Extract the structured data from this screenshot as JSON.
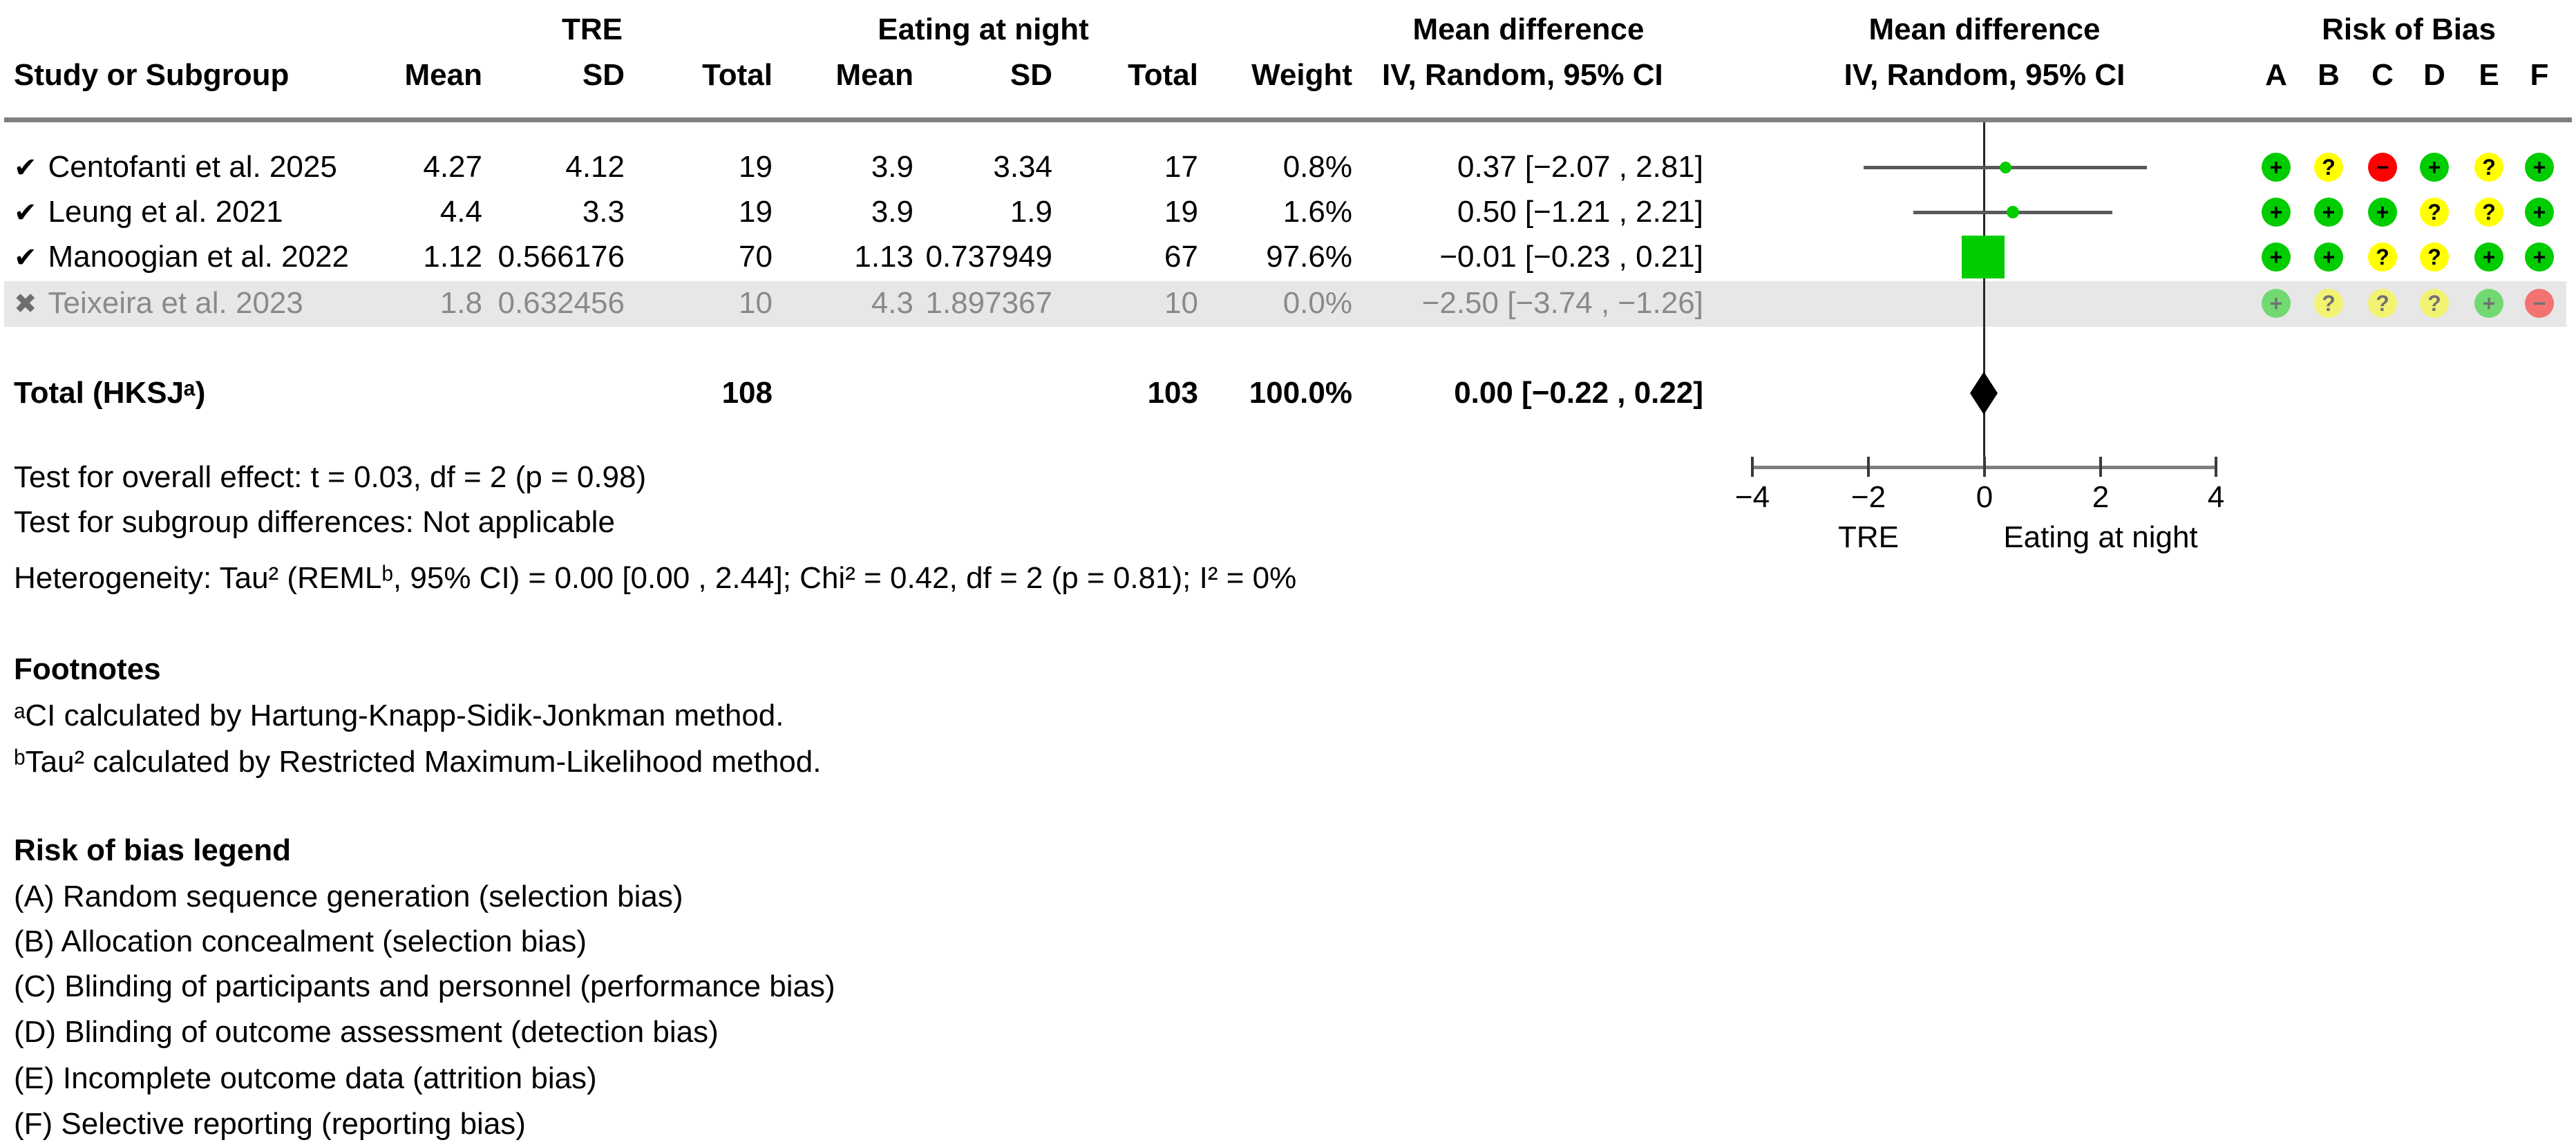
{
  "header": {
    "study_col": "Study or Subgroup",
    "group1": "TRE",
    "group2": "Eating at night",
    "mean": "Mean",
    "sd": "SD",
    "total": "Total",
    "weight": "Weight",
    "effect": "Mean difference",
    "effect_sub": "IV, Random, 95% CI",
    "rob_title": "Risk of Bias",
    "rob_letters": [
      "A",
      "B",
      "C",
      "D",
      "E",
      "F"
    ]
  },
  "studies": [
    {
      "icon": "✔",
      "name": "Centofanti et al. 2025",
      "m1": "4.27",
      "sd1": "4.12",
      "t1": "19",
      "m2": "3.9",
      "sd2": "3.34",
      "t2": "17",
      "weight": "0.8%",
      "ci": "0.37 [−2.07 , 2.81]",
      "rob": [
        {
          "sym": "+",
          "color": "#00cc00"
        },
        {
          "sym": "?",
          "color": "#ffff00"
        },
        {
          "sym": "−",
          "color": "#ff0000"
        },
        {
          "sym": "+",
          "color": "#00cc00"
        },
        {
          "sym": "?",
          "color": "#ffff00"
        },
        {
          "sym": "+",
          "color": "#00cc00"
        }
      ]
    },
    {
      "icon": "✔",
      "name": "Leung et al. 2021",
      "m1": "4.4",
      "sd1": "3.3",
      "t1": "19",
      "m2": "3.9",
      "sd2": "1.9",
      "t2": "19",
      "weight": "1.6%",
      "ci": "0.50 [−1.21 , 2.21]",
      "rob": [
        {
          "sym": "+",
          "color": "#00cc00"
        },
        {
          "sym": "+",
          "color": "#00cc00"
        },
        {
          "sym": "+",
          "color": "#00cc00"
        },
        {
          "sym": "?",
          "color": "#ffff00"
        },
        {
          "sym": "?",
          "color": "#ffff00"
        },
        {
          "sym": "+",
          "color": "#00cc00"
        }
      ]
    },
    {
      "icon": "✔",
      "name": "Manoogian et al. 2022",
      "m1": "1.12",
      "sd1": "0.566176",
      "t1": "70",
      "m2": "1.13",
      "sd2": "0.737949",
      "t2": "67",
      "weight": "97.6%",
      "ci": "−0.01 [−0.23 , 0.21]",
      "rob": [
        {
          "sym": "+",
          "color": "#00cc00"
        },
        {
          "sym": "+",
          "color": "#00cc00"
        },
        {
          "sym": "?",
          "color": "#ffff00"
        },
        {
          "sym": "?",
          "color": "#ffff00"
        },
        {
          "sym": "+",
          "color": "#00cc00"
        },
        {
          "sym": "+",
          "color": "#00cc00"
        }
      ]
    },
    {
      "icon": "✖",
      "name": "Teixeira et al. 2023",
      "m1": "1.8",
      "sd1": "0.632456",
      "t1": "10",
      "m2": "4.3",
      "sd2": "1.897367",
      "t2": "10",
      "weight": "0.0%",
      "ci": "−2.50 [−3.74 , −1.26]",
      "rob": [
        {
          "sym": "+",
          "color": "#00cc00"
        },
        {
          "sym": "?",
          "color": "#ffff00"
        },
        {
          "sym": "?",
          "color": "#ffff00"
        },
        {
          "sym": "?",
          "color": "#ffff00"
        },
        {
          "sym": "+",
          "color": "#00cc00"
        },
        {
          "sym": "−",
          "color": "#ff0000"
        }
      ]
    }
  ],
  "total_row": {
    "label": "Total (HKSJᵃ)",
    "t1": "108",
    "t2": "103",
    "weight": "100.0%",
    "ci": "0.00 [−0.22 , 0.22]"
  },
  "tests": {
    "overall": "Test for overall effect: t = 0.03, df = 2 (p = 0.98)",
    "subgroup": "Test for subgroup differences: Not applicable",
    "heterogeneity": "Heterogeneity: Tau² (REMLᵇ, 95% CI) = 0.00 [0.00 , 2.44]; Chi² = 0.42, df = 2 (p = 0.81); I² = 0%"
  },
  "footnotes": {
    "title": "Footnotes",
    "a": "ᵃCI calculated by Hartung-Knapp-Sidik-Jonkman method.",
    "b": "ᵇTau² calculated by Restricted Maximum-Likelihood method."
  },
  "rob_legend": {
    "title": "Risk of bias legend",
    "items": [
      "(A) Random sequence generation (selection bias)",
      "(B) Allocation concealment (selection bias)",
      "(C) Blinding of participants and personnel (performance bias)",
      "(D) Blinding of outcome assessment (detection bias)",
      "(E) Incomplete outcome data (attrition bias)",
      "(F) Selective reporting (reporting bias)"
    ]
  },
  "chart_data": {
    "type": "forest",
    "title": "Mean difference — IV, Random, 95% CI",
    "xlim": [
      -4,
      4
    ],
    "x_ticks": [
      -4,
      -2,
      0,
      2,
      4
    ],
    "x_tick_labels": [
      "−4",
      "−2",
      "0",
      "2",
      "4"
    ],
    "x_left_label": "TRE",
    "x_right_label": "Eating at night",
    "rows": [
      {
        "study": "Centofanti et al. 2025",
        "effect": 0.37,
        "ci": [
          -2.07,
          2.81
        ],
        "weight_pct": 0.8,
        "plotted": true,
        "marker": "dot"
      },
      {
        "study": "Leung et al. 2021",
        "effect": 0.5,
        "ci": [
          -1.21,
          2.21
        ],
        "weight_pct": 1.6,
        "plotted": true,
        "marker": "dot"
      },
      {
        "study": "Manoogian et al. 2022",
        "effect": -0.01,
        "ci": [
          -0.23,
          0.21
        ],
        "weight_pct": 97.6,
        "plotted": true,
        "marker": "square"
      },
      {
        "study": "Teixeira et al. 2023",
        "effect": -2.5,
        "ci": [
          -3.74,
          -1.26
        ],
        "weight_pct": 0.0,
        "plotted": false,
        "marker": "none"
      }
    ],
    "total": {
      "label": "Total (HKSJᵃ)",
      "effect": 0.0,
      "ci": [
        -0.22,
        0.22
      ],
      "marker": "diamond"
    },
    "colors": {
      "marker_green": "#00cc00",
      "diamond": "#000000",
      "ci_line": "#595959",
      "axis": "#7f7f7f",
      "rob_green": "#00cc00",
      "rob_yellow": "#ffff00",
      "rob_red": "#ff0000",
      "excluded_band": "#e7e7e7"
    }
  }
}
